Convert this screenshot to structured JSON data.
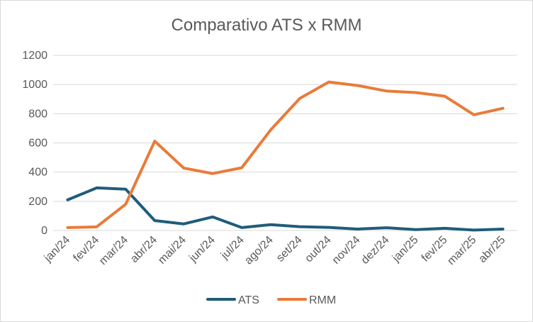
{
  "chart_data": {
    "type": "line",
    "title": "Comparativo ATS x RMM",
    "xlabel": "",
    "ylabel": "",
    "categories": [
      "jan/24",
      "fev/24",
      "mar/24",
      "abr/24",
      "mai/24",
      "jun/24",
      "jul/24",
      "ago/24",
      "set/24",
      "out/24",
      "nov/24",
      "dez/24",
      "jan/25",
      "fev/25",
      "mar/25",
      "abr/25"
    ],
    "ylim": [
      0,
      1200
    ],
    "yticks": [
      "0",
      "200",
      "400",
      "600",
      "800",
      "1000",
      "1200"
    ],
    "grid": true,
    "legend": "bottom",
    "series": [
      {
        "name": "ATS",
        "color": "#1f5c7a",
        "values": [
          210,
          292,
          283,
          68,
          45,
          93,
          20,
          40,
          26,
          21,
          10,
          19,
          6,
          15,
          3,
          10
        ]
      },
      {
        "name": "RMM",
        "color": "#e97b3a",
        "values": [
          20,
          25,
          180,
          612,
          428,
          390,
          430,
          690,
          905,
          1017,
          993,
          955,
          945,
          920,
          793,
          837
        ]
      }
    ]
  }
}
